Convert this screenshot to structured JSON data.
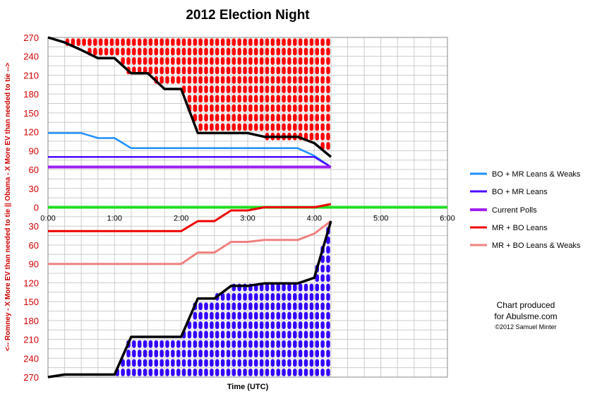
{
  "chart_data": {
    "type": "line",
    "title": "2012 Election Night",
    "xlabel": "Time (UTC)",
    "ylabel": "<-- Romney - X More EV than needed to tie || Obama - X More EV than needed to tie -->",
    "x_ticks": [
      "0:00",
      "1:00",
      "2:00",
      "3:00",
      "4:00",
      "5:00",
      "6:00"
    ],
    "y_ticks_top": [
      "270",
      "240",
      "210",
      "180",
      "150",
      "120",
      "90",
      "60",
      "30",
      "0"
    ],
    "y_ticks_bottom": [
      "30",
      "60",
      "90",
      "120",
      "150",
      "180",
      "210",
      "240",
      "270"
    ],
    "xlim": [
      0,
      6
    ],
    "ylim": [
      -270,
      270
    ],
    "grid": true,
    "legend_position": "right",
    "series": [
      {
        "name": "BO + MR Leans & Weaks",
        "color": "#1e90ff",
        "points": [
          [
            0,
            118
          ],
          [
            0.5,
            118
          ],
          [
            0.75,
            110
          ],
          [
            1.0,
            110
          ],
          [
            1.25,
            94
          ],
          [
            3.75,
            94
          ],
          [
            4.0,
            82
          ],
          [
            4.25,
            64
          ]
        ]
      },
      {
        "name": "BO + MR Leans",
        "color": "#4b0aff",
        "points": [
          [
            0,
            80
          ],
          [
            4.0,
            80
          ],
          [
            4.25,
            64
          ]
        ]
      },
      {
        "name": "Current Polls",
        "color": "#a020f0",
        "points": [
          [
            0,
            64
          ],
          [
            4.25,
            64
          ]
        ]
      },
      {
        "name": "MR + BO Leans",
        "color": "#ee0000",
        "points": [
          [
            0,
            -38
          ],
          [
            2.0,
            -38
          ],
          [
            2.25,
            -22
          ],
          [
            2.5,
            -22
          ],
          [
            2.75,
            -5
          ],
          [
            3.0,
            -5
          ],
          [
            3.25,
            0
          ],
          [
            4.0,
            0
          ],
          [
            4.25,
            5
          ]
        ]
      },
      {
        "name": "MR + BO Leans & Weaks",
        "color": "#f08080",
        "points": [
          [
            0,
            -90
          ],
          [
            2.0,
            -90
          ],
          [
            2.25,
            -72
          ],
          [
            2.5,
            -72
          ],
          [
            2.75,
            -55
          ],
          [
            3.0,
            -55
          ],
          [
            3.25,
            -52
          ],
          [
            3.75,
            -52
          ],
          [
            4.0,
            -42
          ],
          [
            4.25,
            -22
          ]
        ]
      }
    ],
    "obama_range_line": {
      "color": "#000000",
      "points": [
        [
          0,
          270
        ],
        [
          0.25,
          262
        ],
        [
          0.5,
          250
        ],
        [
          0.75,
          237
        ],
        [
          1.0,
          237
        ],
        [
          1.25,
          213
        ],
        [
          1.5,
          213
        ],
        [
          1.75,
          188
        ],
        [
          2.0,
          188
        ],
        [
          2.25,
          118
        ],
        [
          2.75,
          118
        ],
        [
          3.0,
          118
        ],
        [
          3.25,
          112
        ],
        [
          3.75,
          112
        ],
        [
          4.0,
          102
        ],
        [
          4.25,
          80
        ]
      ]
    },
    "romney_range_line": {
      "color": "#000000",
      "points": [
        [
          0,
          -270
        ],
        [
          0.25,
          -266
        ],
        [
          0.5,
          -266
        ],
        [
          0.75,
          -266
        ],
        [
          1.0,
          -266
        ],
        [
          1.25,
          -206
        ],
        [
          1.5,
          -206
        ],
        [
          1.75,
          -206
        ],
        [
          2.0,
          -206
        ],
        [
          2.25,
          -145
        ],
        [
          2.5,
          -145
        ],
        [
          2.75,
          -125
        ],
        [
          3.0,
          -125
        ],
        [
          3.25,
          -121
        ],
        [
          3.75,
          -121
        ],
        [
          4.0,
          -112
        ],
        [
          4.25,
          -22
        ]
      ]
    },
    "center_line": {
      "color": "#22dd22",
      "value": 0
    },
    "credit": {
      "line1": "Chart produced",
      "line2": "for Abulsme.com",
      "line3": "©2012 Samuel Minter"
    }
  }
}
